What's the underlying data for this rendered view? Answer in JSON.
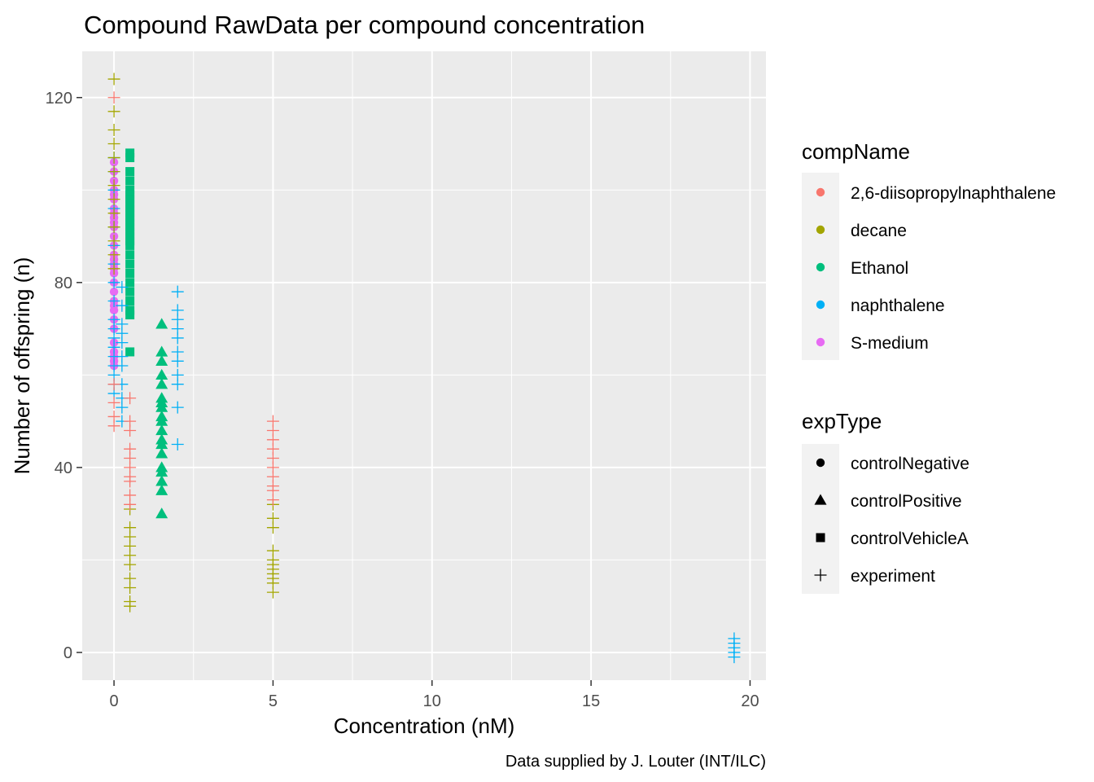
{
  "chart_data": {
    "type": "scatter",
    "title": "Compound RawData per compound concentration",
    "xlabel": "Concentration (nM)",
    "ylabel": "Number of offspring (n)",
    "caption": "Data supplied by J. Louter (INT/ILC)",
    "xlim": [
      -1,
      20.5
    ],
    "ylim": [
      -6,
      130
    ],
    "x_ticks": [
      0,
      5,
      10,
      15,
      20
    ],
    "y_ticks": [
      0,
      40,
      80,
      120
    ],
    "grid": true,
    "legend_position": "right",
    "color_legend": {
      "title": "compName",
      "entries": [
        {
          "label": "2,6-diisopropylnaphthalene",
          "color": "#F8766D"
        },
        {
          "label": "decane",
          "color": "#A3A500"
        },
        {
          "label": "Ethanol",
          "color": "#00BF7D"
        },
        {
          "label": "naphthalene",
          "color": "#00B0F6"
        },
        {
          "label": "S-medium",
          "color": "#E76BF3"
        }
      ]
    },
    "shape_legend": {
      "title": "expType",
      "entries": [
        {
          "label": "controlNegative",
          "shape": "circle"
        },
        {
          "label": "controlPositive",
          "shape": "triangle"
        },
        {
          "label": "controlVehicleA",
          "shape": "square"
        },
        {
          "label": "experiment",
          "shape": "plus"
        }
      ]
    },
    "groups": [
      {
        "compName": "S-medium",
        "expType": "controlNegative",
        "x": 0,
        "y": [
          106,
          104,
          102,
          100,
          99,
          98,
          96,
          95,
          94,
          93,
          92,
          90,
          88,
          86,
          85,
          84,
          83,
          82,
          80,
          78,
          76,
          75,
          74,
          72,
          70,
          67,
          65,
          64,
          63,
          62
        ]
      },
      {
        "compName": "Ethanol",
        "expType": "controlVehicleA",
        "x": 0.5,
        "y": [
          108,
          107,
          104,
          102,
          100,
          99,
          98,
          97,
          96,
          95,
          94,
          93,
          92,
          91,
          90,
          89,
          88,
          86,
          84,
          82,
          80,
          78,
          76,
          74,
          73,
          65
        ]
      },
      {
        "compName": "Ethanol",
        "expType": "controlPositive",
        "x": 1.5,
        "y": [
          71,
          65,
          63,
          60,
          58,
          55,
          54,
          53,
          51,
          50,
          48,
          46,
          45,
          43,
          40,
          39,
          37,
          35,
          30
        ]
      },
      {
        "compName": "naphthalene",
        "expType": "experiment",
        "x": 2,
        "y": [
          78,
          74,
          72,
          70,
          68,
          65,
          63,
          60,
          58,
          53,
          45
        ]
      },
      {
        "compName": "naphthalene",
        "expType": "experiment",
        "x": 0,
        "y": [
          107,
          104,
          100,
          96,
          92,
          88,
          84,
          80,
          76,
          72,
          70,
          68,
          66,
          64,
          62,
          60,
          58,
          56
        ]
      },
      {
        "compName": "naphthalene",
        "expType": "experiment",
        "x": 0.25,
        "y": [
          79,
          75,
          71,
          69,
          67,
          64,
          62,
          58,
          55,
          53,
          50
        ]
      },
      {
        "compName": "decane",
        "expType": "experiment",
        "x": 0,
        "y": [
          124,
          117,
          113,
          110,
          107,
          104,
          101,
          98,
          95,
          92,
          89,
          86,
          83
        ]
      },
      {
        "compName": "decane",
        "expType": "experiment",
        "x": 0.5,
        "y": [
          31,
          27,
          25,
          23,
          21,
          19,
          16,
          14,
          11,
          10
        ]
      },
      {
        "compName": "decane",
        "expType": "experiment",
        "x": 5,
        "y": [
          32,
          29,
          27,
          22,
          20,
          19,
          18,
          17,
          16,
          15,
          13
        ]
      },
      {
        "compName": "2,6-diisopropylnaphthalene",
        "expType": "experiment",
        "x": 0,
        "y": [
          120,
          58,
          54,
          51,
          49
        ]
      },
      {
        "compName": "2,6-diisopropylnaphthalene",
        "expType": "experiment",
        "x": 0.5,
        "y": [
          55,
          50,
          48,
          44,
          42,
          40,
          38,
          37,
          34,
          32
        ]
      },
      {
        "compName": "2,6-diisopropylnaphthalene",
        "expType": "experiment",
        "x": 5,
        "y": [
          50,
          48,
          46,
          44,
          42,
          40,
          38,
          36,
          35,
          33
        ]
      },
      {
        "compName": "naphthalene",
        "expType": "experiment",
        "x": 19.5,
        "y": [
          3,
          2,
          1,
          0,
          -1
        ]
      }
    ]
  }
}
